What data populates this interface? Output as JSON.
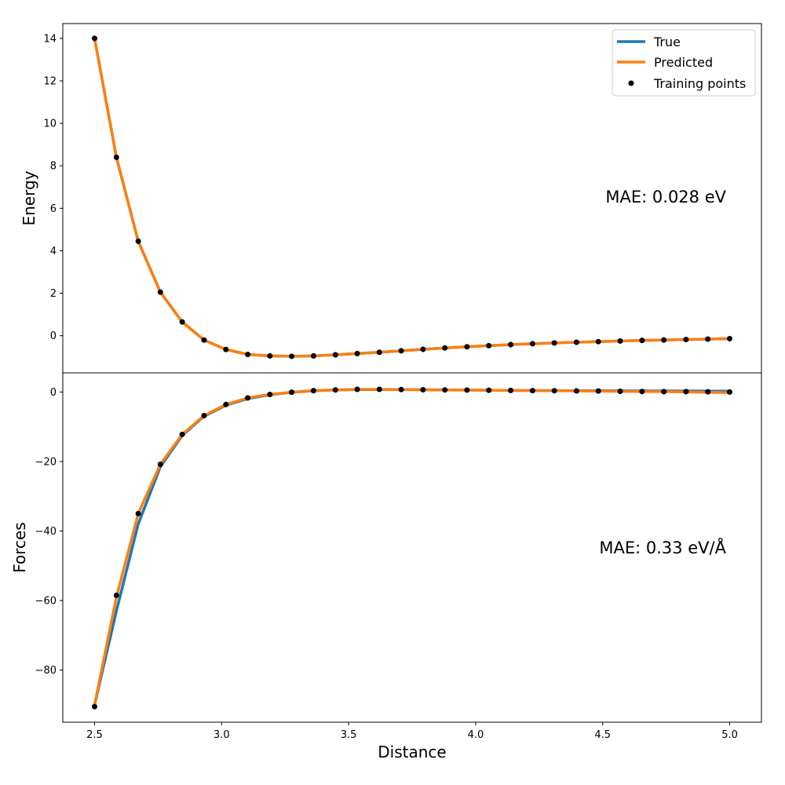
{
  "chart_data": [
    {
      "type": "line",
      "ylabel": "Energy",
      "xlim": [
        2.375,
        5.125
      ],
      "ylim": [
        -1.75,
        14.7
      ],
      "yticks": [
        0,
        2,
        4,
        6,
        8,
        10,
        12,
        14
      ],
      "yticklabels": [
        "0",
        "2",
        "4",
        "6",
        "8",
        "10",
        "12",
        "14"
      ],
      "annotation": "MAE: 0.028 eV",
      "legend": {
        "placement": "top-right",
        "entries": [
          "True",
          "Predicted",
          "Training points"
        ]
      },
      "colors": {
        "true": "#1f77b4",
        "predicted": "#ff7f0e",
        "points": "#000000"
      },
      "x": [
        2.5,
        2.586,
        2.672,
        2.759,
        2.845,
        2.931,
        3.017,
        3.103,
        3.19,
        3.276,
        3.362,
        3.448,
        3.534,
        3.621,
        3.707,
        3.793,
        3.879,
        3.966,
        4.052,
        4.138,
        4.224,
        4.31,
        4.397,
        4.483,
        4.569,
        4.655,
        4.741,
        4.828,
        4.914,
        5.0
      ],
      "series": [
        {
          "name": "True",
          "values": [
            14.0,
            8.4,
            4.45,
            2.05,
            0.65,
            -0.2,
            -0.65,
            -0.88,
            -0.95,
            -0.97,
            -0.95,
            -0.9,
            -0.84,
            -0.78,
            -0.71,
            -0.64,
            -0.58,
            -0.52,
            -0.47,
            -0.42,
            -0.38,
            -0.34,
            -0.31,
            -0.28,
            -0.25,
            -0.22,
            -0.2,
            -0.18,
            -0.16,
            -0.14
          ]
        },
        {
          "name": "Predicted",
          "values": [
            14.0,
            8.4,
            4.45,
            2.05,
            0.65,
            -0.2,
            -0.65,
            -0.88,
            -0.95,
            -0.97,
            -0.95,
            -0.9,
            -0.84,
            -0.78,
            -0.71,
            -0.64,
            -0.58,
            -0.52,
            -0.47,
            -0.42,
            -0.38,
            -0.34,
            -0.31,
            -0.28,
            -0.25,
            -0.22,
            -0.2,
            -0.18,
            -0.16,
            -0.14
          ]
        },
        {
          "name": "Training points",
          "values": [
            14.0,
            8.4,
            4.45,
            2.05,
            0.65,
            -0.2,
            -0.65,
            -0.88,
            -0.95,
            -0.97,
            -0.95,
            -0.9,
            -0.84,
            -0.78,
            -0.71,
            -0.64,
            -0.58,
            -0.52,
            -0.47,
            -0.42,
            -0.38,
            -0.34,
            -0.31,
            -0.28,
            -0.25,
            -0.22,
            -0.2,
            -0.18,
            -0.16,
            -0.14
          ]
        }
      ]
    },
    {
      "type": "line",
      "ylabel": "Forces",
      "xlabel": "Distance",
      "xlim": [
        2.375,
        5.125
      ],
      "ylim": [
        -95.0,
        5.5
      ],
      "xticks": [
        2.5,
        3.0,
        3.5,
        4.0,
        4.5,
        5.0
      ],
      "xticklabels": [
        "2.5",
        "3.0",
        "3.5",
        "4.0",
        "4.5",
        "5.0"
      ],
      "yticks": [
        0,
        -20,
        -40,
        -60,
        -80
      ],
      "yticklabels": [
        "0",
        "−20",
        "−40",
        "−60",
        "−80"
      ],
      "annotation": "MAE: 0.33 eV/Å",
      "colors": {
        "true": "#1f77b4",
        "predicted": "#ff7f0e",
        "points": "#000000"
      },
      "x": [
        2.5,
        2.586,
        2.672,
        2.759,
        2.845,
        2.931,
        3.017,
        3.103,
        3.19,
        3.276,
        3.362,
        3.448,
        3.534,
        3.621,
        3.707,
        3.793,
        3.879,
        3.966,
        4.052,
        4.138,
        4.224,
        4.31,
        4.397,
        4.483,
        4.569,
        4.655,
        4.741,
        4.828,
        4.914,
        5.0
      ],
      "series": [
        {
          "name": "True",
          "values": [
            -90.0,
            -63.0,
            -38.0,
            -21.5,
            -12.5,
            -7.0,
            -3.8,
            -1.9,
            -0.8,
            -0.1,
            0.35,
            0.6,
            0.7,
            0.7,
            0.7,
            0.65,
            0.6,
            0.55,
            0.5,
            0.45,
            0.42,
            0.4,
            0.37,
            0.35,
            0.33,
            0.31,
            0.3,
            0.28,
            0.27,
            0.26
          ]
        },
        {
          "name": "Predicted",
          "values": [
            -90.0,
            -59.0,
            -35.0,
            -20.8,
            -12.2,
            -6.8,
            -3.6,
            -1.7,
            -0.7,
            -0.05,
            0.4,
            0.6,
            0.75,
            0.75,
            0.7,
            0.65,
            0.6,
            0.55,
            0.5,
            0.45,
            0.4,
            0.35,
            0.3,
            0.25,
            0.2,
            0.15,
            0.1,
            0.0,
            -0.1,
            -0.2
          ]
        },
        {
          "name": "Training points",
          "values": [
            -90.5,
            -58.5,
            -35.0,
            -20.8,
            -12.2,
            -6.8,
            -3.6,
            -1.7,
            -0.7,
            -0.05,
            0.4,
            0.6,
            0.75,
            0.75,
            0.7,
            0.65,
            0.6,
            0.55,
            0.5,
            0.45,
            0.4,
            0.35,
            0.3,
            0.28,
            0.2,
            0.15,
            0.1,
            0.1,
            0.05,
            0.0
          ]
        }
      ]
    }
  ]
}
